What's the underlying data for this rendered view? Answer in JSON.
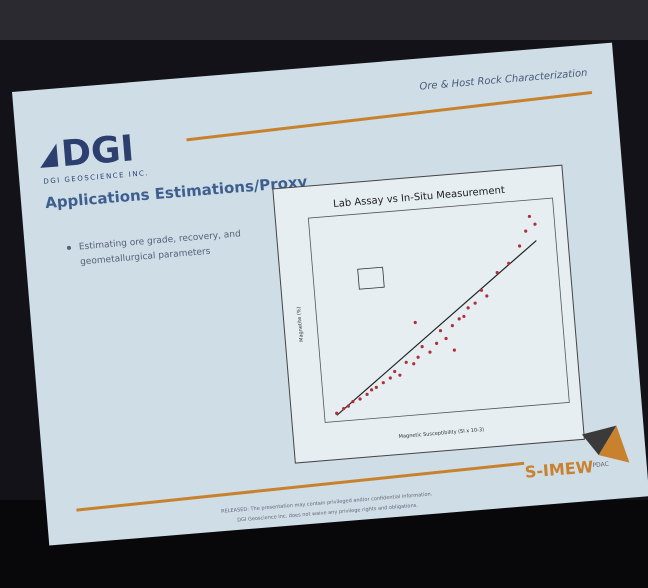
{
  "slide": {
    "header": "Ore & Host Rock Characterization",
    "logo": "DGI",
    "company": "DGI GEOSCIENCE INC.",
    "title": "Applications Estimations/Proxy",
    "bullets": [
      "Estimating ore grade, recovery, and",
      "geometallurgical parameters"
    ],
    "footer_logo": "S-IMEW",
    "footer_badge": "PDAC",
    "disclaimer": [
      "RELEASED: The presentation may contain privileged and/or confidential information.",
      "DGI Geoscience Inc. does not waive any privilege rights and obligations."
    ]
  },
  "chart_data": {
    "type": "scatter",
    "title": "Lab Assay vs In-Situ Measurement",
    "xlabel": "Magnetic Susceptibility (SI x 10-3)",
    "ylabel": "Magnetite (%)",
    "color": "#b0303a",
    "xlim": [
      0,
      100
    ],
    "ylim": [
      0,
      100
    ],
    "x": [
      5,
      8,
      10,
      12,
      15,
      18,
      20,
      22,
      25,
      28,
      30,
      32,
      35,
      38,
      40,
      42,
      45,
      48,
      50,
      52,
      55,
      58,
      60,
      62,
      65,
      68,
      70,
      75,
      80,
      85,
      88,
      90,
      92,
      40,
      55
    ],
    "y": [
      4,
      6,
      7,
      9,
      10,
      12,
      14,
      15,
      17,
      19,
      22,
      20,
      26,
      25,
      28,
      33,
      30,
      34,
      40,
      36,
      42,
      45,
      46,
      50,
      52,
      58,
      55,
      66,
      70,
      78,
      85,
      92,
      88,
      45,
      30
    ]
  }
}
